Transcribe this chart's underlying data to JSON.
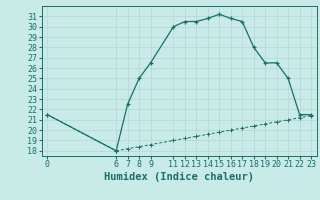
{
  "xlabel": "Humidex (Indice chaleur)",
  "background_color": "#c8ebe8",
  "grid_color": "#b8d8d4",
  "line_color": "#1a6e6a",
  "ylim": [
    17.5,
    32.0
  ],
  "xlim": [
    -0.5,
    23.5
  ],
  "yticks": [
    18,
    19,
    20,
    21,
    22,
    23,
    24,
    25,
    26,
    27,
    28,
    29,
    30,
    31
  ],
  "xticks": [
    0,
    6,
    7,
    8,
    9,
    11,
    12,
    13,
    14,
    15,
    16,
    17,
    18,
    19,
    20,
    21,
    22,
    23
  ],
  "curve1_x": [
    0,
    6,
    7,
    8,
    9,
    11,
    12,
    13,
    14,
    15,
    16,
    17,
    18,
    19,
    20,
    21,
    22,
    23
  ],
  "curve1_y": [
    21.5,
    18.0,
    22.5,
    25.0,
    26.5,
    30.0,
    30.5,
    30.5,
    30.8,
    31.2,
    30.8,
    30.5,
    28.0,
    26.5,
    26.5,
    25.0,
    21.5,
    21.5
  ],
  "curve2_x": [
    0,
    6,
    7,
    8,
    9,
    11,
    12,
    13,
    14,
    15,
    16,
    17,
    18,
    19,
    20,
    21,
    22,
    23
  ],
  "curve2_y": [
    21.5,
    18.0,
    18.2,
    18.4,
    18.6,
    19.0,
    19.2,
    19.4,
    19.6,
    19.8,
    20.0,
    20.2,
    20.4,
    20.6,
    20.8,
    21.0,
    21.2,
    21.4
  ],
  "font_family": "monospace",
  "tick_fontsize": 6,
  "xlabel_fontsize": 7.5,
  "marker": "+"
}
